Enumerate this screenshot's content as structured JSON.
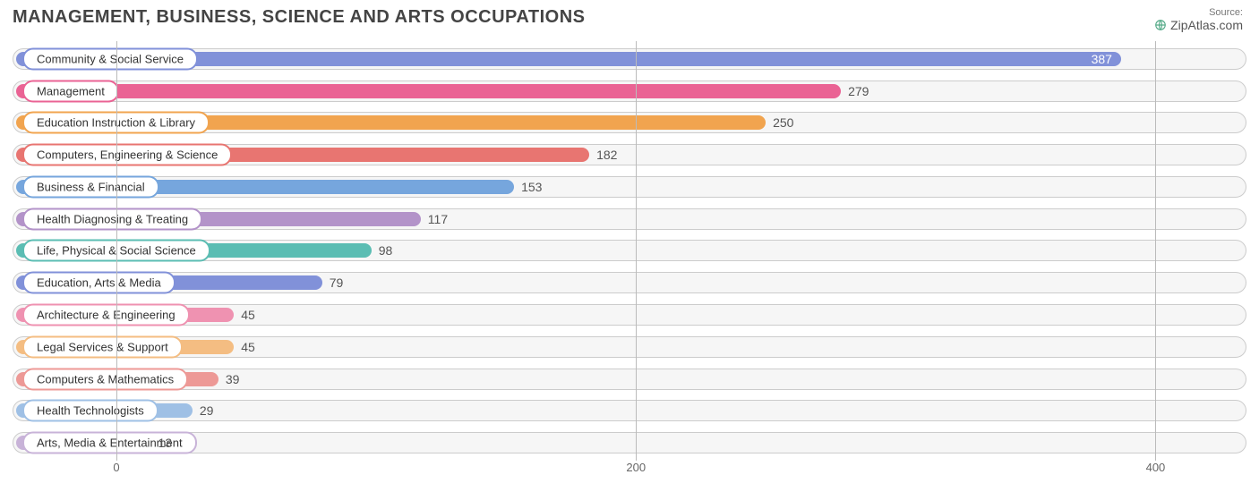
{
  "title": "MANAGEMENT, BUSINESS, SCIENCE AND ARTS OCCUPATIONS",
  "source_label": "Source:",
  "source_name": "ZipAtlas.com",
  "chart": {
    "type": "bar-horizontal",
    "xmin": -40,
    "xmax": 435,
    "ticks": [
      0,
      200,
      400
    ],
    "grid_color": "#bbbbbb",
    "track_bg": "#f6f6f6",
    "track_border": "#cccccc",
    "bars": [
      {
        "label": "Community & Social Service",
        "value": 387,
        "color": "#8191d9",
        "value_inside": true,
        "value_color": "#ffffff"
      },
      {
        "label": "Management",
        "value": 279,
        "color": "#ea6394",
        "value_inside": false,
        "value_color": "#555555"
      },
      {
        "label": "Education Instruction & Library",
        "value": 250,
        "color": "#f1a44f",
        "value_inside": false,
        "value_color": "#555555"
      },
      {
        "label": "Computers, Engineering & Science",
        "value": 182,
        "color": "#e87571",
        "value_inside": false,
        "value_color": "#555555"
      },
      {
        "label": "Business & Financial",
        "value": 153,
        "color": "#76a6dd",
        "value_inside": false,
        "value_color": "#555555"
      },
      {
        "label": "Health Diagnosing & Treating",
        "value": 117,
        "color": "#b393c9",
        "value_inside": false,
        "value_color": "#555555"
      },
      {
        "label": "Life, Physical & Social Science",
        "value": 98,
        "color": "#5bbdb3",
        "value_inside": false,
        "value_color": "#555555"
      },
      {
        "label": "Education, Arts & Media",
        "value": 79,
        "color": "#8191d9",
        "value_inside": false,
        "value_color": "#555555"
      },
      {
        "label": "Architecture & Engineering",
        "value": 45,
        "color": "#ef92b1",
        "value_inside": false,
        "value_color": "#555555"
      },
      {
        "label": "Legal Services & Support",
        "value": 45,
        "color": "#f4bd82",
        "value_inside": false,
        "value_color": "#555555"
      },
      {
        "label": "Computers & Mathematics",
        "value": 39,
        "color": "#ed9996",
        "value_inside": false,
        "value_color": "#555555"
      },
      {
        "label": "Health Technologists",
        "value": 29,
        "color": "#9fc0e5",
        "value_inside": false,
        "value_color": "#555555"
      },
      {
        "label": "Arts, Media & Entertainment",
        "value": 13,
        "color": "#c8b3d8",
        "value_inside": false,
        "value_color": "#555555"
      }
    ]
  }
}
